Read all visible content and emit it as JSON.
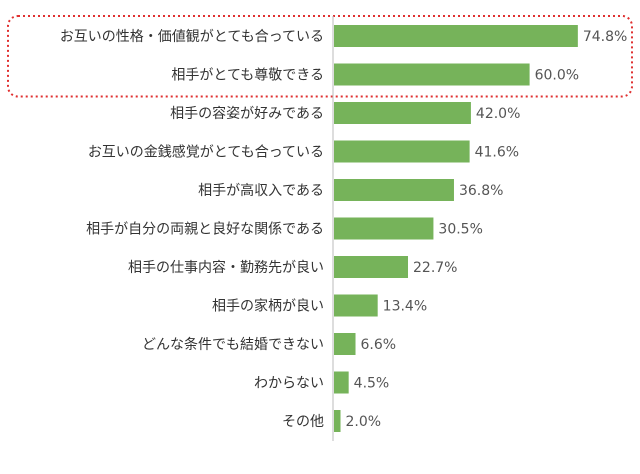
{
  "chart_data": {
    "type": "bar",
    "orientation": "horizontal",
    "categories": [
      "お互いの性格・価値観がとても合っている",
      "相手がとても尊敬できる",
      "相手の容姿が好みである",
      "お互いの金銭感覚がとても合っている",
      "相手が高収入である",
      "相手が自分の両親と良好な関係である",
      "相手の仕事内容・勤務先が良い",
      "相手の家柄が良い",
      "どんな条件でも結婚できない",
      "わからない",
      "その他"
    ],
    "values": [
      74.8,
      60.0,
      42.0,
      41.6,
      36.8,
      30.5,
      22.7,
      13.4,
      6.6,
      4.5,
      2.0
    ],
    "value_labels": [
      "74.8%",
      "60.0%",
      "42.0%",
      "41.6%",
      "36.8%",
      "30.5%",
      "22.7%",
      "13.4%",
      "6.6%",
      "4.5%",
      "2.0%"
    ],
    "xlim": [
      0,
      100
    ],
    "grid": false,
    "legend": "none",
    "highlight": {
      "indices": [
        0,
        1
      ],
      "style": "dotted-rounded-box",
      "color": "#e03030"
    },
    "colors": {
      "bar": "#76b35a",
      "label": "#333333",
      "value": "#555555",
      "axis": "#bbbbbb"
    }
  }
}
